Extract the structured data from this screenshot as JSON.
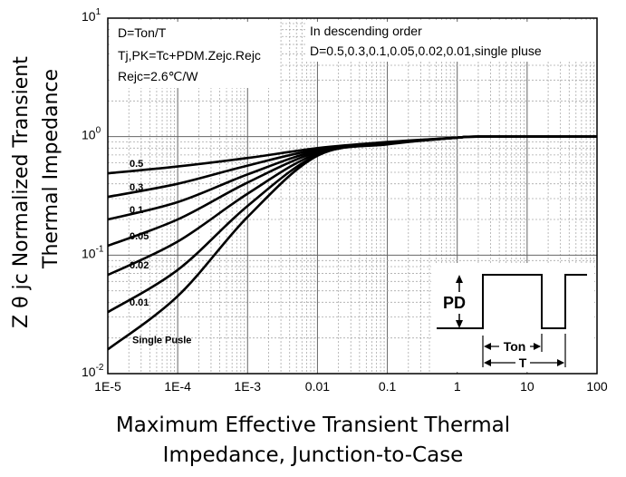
{
  "chart_data": {
    "type": "line",
    "x_scale": "log",
    "y_scale": "log",
    "xlim": [
      1e-05,
      100
    ],
    "ylim": [
      0.01,
      10
    ],
    "x_ticks": [
      "1E-5",
      "1E-4",
      "1E-3",
      "0.01",
      "0.1",
      "1",
      "10",
      "100"
    ],
    "y_ticks": [
      {
        "base": "10",
        "exp": "1"
      },
      {
        "base": "10",
        "exp": "0"
      },
      {
        "base": "10",
        "exp": "-1"
      },
      {
        "base": "10",
        "exp": "-2"
      }
    ],
    "grid": true,
    "xlabel_lines": [
      "Maximum Effective Transient Thermal",
      "Impedance, Junction-to-Case"
    ],
    "ylabel_lines": [
      "Z θ jc  Normalized Transient",
      "Thermal   Impedance"
    ],
    "annotations": {
      "left": [
        "D=Ton/T",
        "Tj,PK=Tc+PDM.Zejc.Rejc",
        "Rejc=2.6℃/W"
      ],
      "right": [
        "In descending order",
        "D=0.5,0.3,0.1,0.05,0.02,0.01,single pluse"
      ],
      "inset": {
        "pd": "PD",
        "ton": "Ton",
        "t": "T"
      }
    },
    "series": [
      {
        "name": "0.5",
        "x": [
          1e-05,
          0.0001,
          0.001,
          0.01,
          0.1,
          1,
          2,
          100
        ],
        "y": [
          0.49,
          0.56,
          0.66,
          0.8,
          0.9,
          0.98,
          1.0,
          1.0
        ]
      },
      {
        "name": "0.3",
        "x": [
          1e-05,
          0.0001,
          0.001,
          0.01,
          0.1,
          1,
          2,
          100
        ],
        "y": [
          0.31,
          0.4,
          0.57,
          0.78,
          0.89,
          0.98,
          1.0,
          1.0
        ]
      },
      {
        "name": "0.1",
        "x": [
          1e-05,
          0.0001,
          0.001,
          0.01,
          0.1,
          1,
          2,
          100
        ],
        "y": [
          0.2,
          0.28,
          0.48,
          0.76,
          0.88,
          0.98,
          1.0,
          1.0
        ]
      },
      {
        "name": "0.05",
        "x": [
          1e-05,
          0.0001,
          0.001,
          0.01,
          0.1,
          1,
          2,
          100
        ],
        "y": [
          0.12,
          0.2,
          0.41,
          0.74,
          0.88,
          0.98,
          1.0,
          1.0
        ]
      },
      {
        "name": "0.02",
        "x": [
          1e-05,
          0.0001,
          0.001,
          0.01,
          0.1,
          1,
          2,
          100
        ],
        "y": [
          0.068,
          0.13,
          0.33,
          0.72,
          0.87,
          0.98,
          1.0,
          1.0
        ]
      },
      {
        "name": "0.01",
        "x": [
          1e-05,
          0.0001,
          0.001,
          0.01,
          0.1,
          1,
          2,
          100
        ],
        "y": [
          0.033,
          0.075,
          0.26,
          0.7,
          0.87,
          0.98,
          1.0,
          1.0
        ]
      },
      {
        "name": "Single Pusle",
        "x": [
          1e-05,
          0.0001,
          0.001,
          0.01,
          0.1,
          1,
          2,
          100
        ],
        "y": [
          0.016,
          0.045,
          0.21,
          0.69,
          0.86,
          0.98,
          1.0,
          1.0
        ]
      }
    ]
  }
}
